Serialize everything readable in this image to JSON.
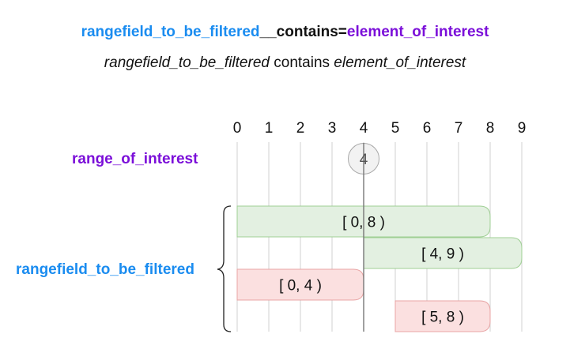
{
  "title": {
    "field": "rangefield_to_be_filtered",
    "separator": "__",
    "lookup": "contains",
    "equals": "=",
    "value": "element_of_interest"
  },
  "subtitle": {
    "field": "rangefield_to_be_filtered",
    "verb": " contains ",
    "value": "element_of_interest"
  },
  "labels": {
    "range_of_interest": "range_of_interest",
    "rangefield": "rangefield_to_be_filtered"
  },
  "axis": {
    "ticks": [
      "0",
      "1",
      "2",
      "3",
      "4",
      "5",
      "6",
      "7",
      "8",
      "9"
    ]
  },
  "element": {
    "value": 4,
    "label": "4"
  },
  "ranges": [
    {
      "label": "[ 0, 8 )",
      "start": 0,
      "end": 8,
      "match": true
    },
    {
      "label": "[ 4, 9 )",
      "start": 4,
      "end": 9,
      "match": true
    },
    {
      "label": "[ 0, 4 )",
      "start": 0,
      "end": 4,
      "match": false
    },
    {
      "label": "[ 5, 8 )",
      "start": 5,
      "end": 8,
      "match": false
    }
  ],
  "colors": {
    "blue": "#1a8cf0",
    "purple": "#7b0fd9",
    "match_fill": "#e3f0e1",
    "match_stroke": "#9fcf94",
    "nomatch_fill": "#fbe0e0",
    "nomatch_stroke": "#e8a5a5",
    "grid": "#d0d0d0"
  }
}
